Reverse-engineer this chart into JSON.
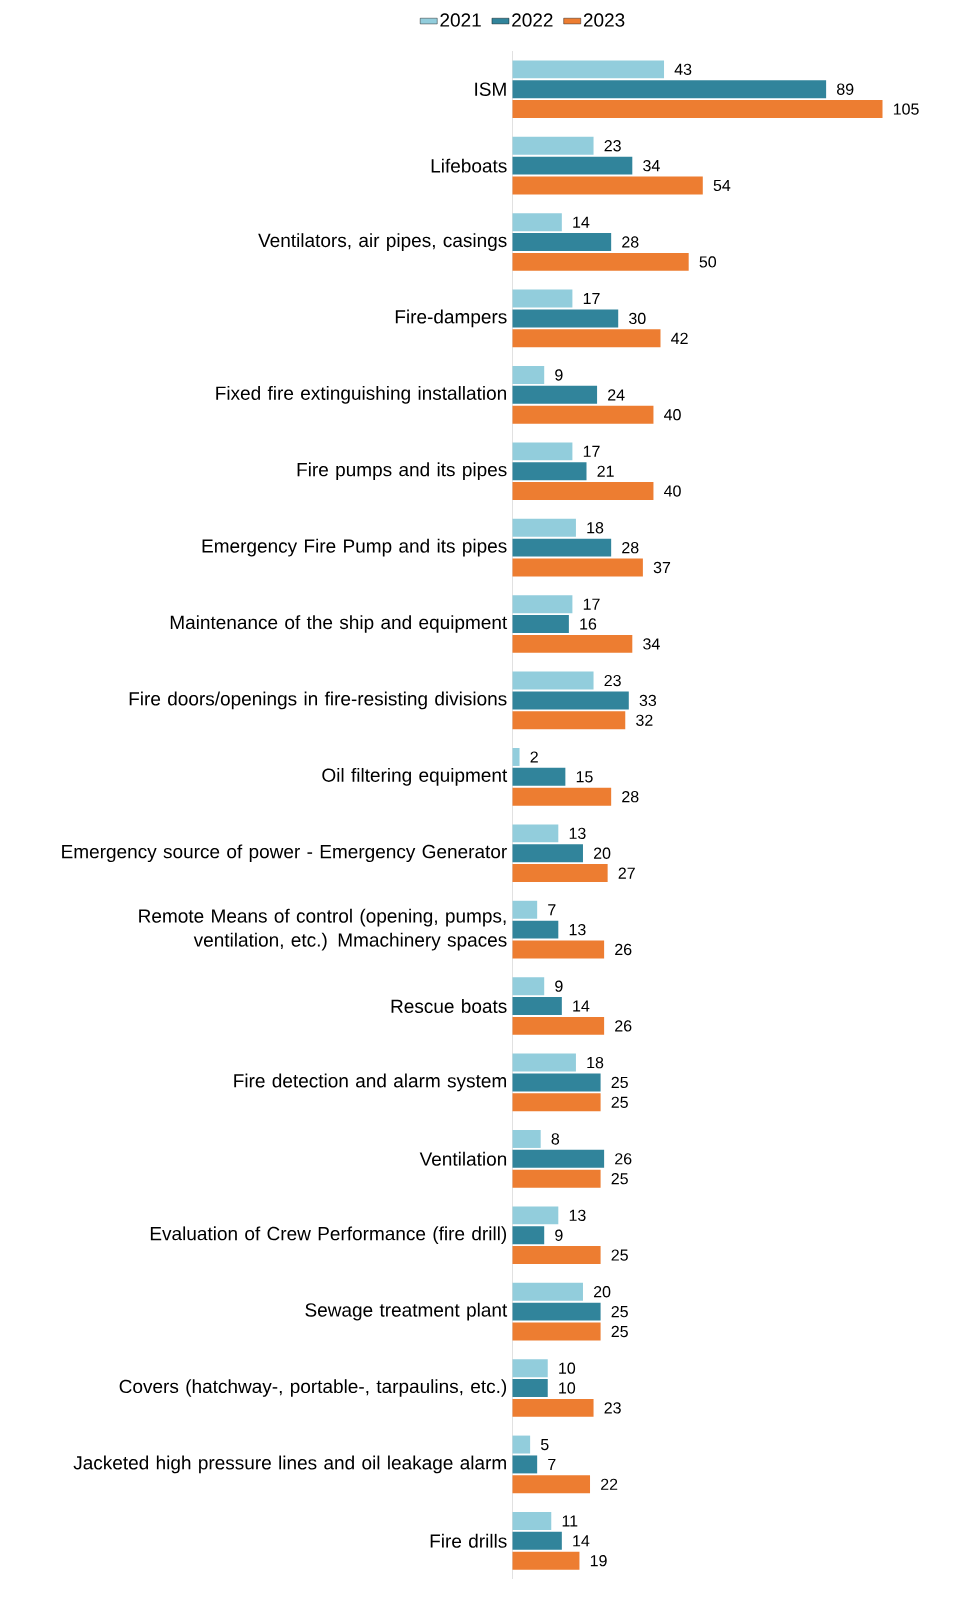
{
  "chart_data": {
    "type": "bar",
    "orientation": "horizontal",
    "data_labels": true,
    "legend": "top",
    "categories": [
      "ISM",
      "Lifeboats",
      "Ventilators, air pipes, casings",
      "Fire-dampers",
      "Fixed fire extinguishing installation",
      "Fire pumps and its pipes",
      "Emergency Fire Pump and its pipes",
      "Maintenance of the ship and equipment",
      "Fire doors/openings in fire-resisting divisions",
      "Oil filtering equipment",
      "Emergency source of power - Emergency Generator",
      "Remote Means of control (opening, pumps, ventilation, etc.) Mmachinery spaces",
      "Rescue boats",
      "Fire detection and alarm system",
      "Ventilation",
      "Evaluation of Crew Performance (fire drill)",
      "Sewage treatment plant",
      "Covers (hatchway-, portable-, tarpaulins, etc.)",
      "Jacketed high pressure lines and oil leakage alarm",
      "Fire drills"
    ],
    "series": [
      {
        "name": "2021",
        "color": "#92cddc",
        "values": [
          43,
          23,
          14,
          17,
          9,
          17,
          18,
          17,
          23,
          2,
          13,
          7,
          9,
          18,
          8,
          13,
          20,
          10,
          5,
          11
        ]
      },
      {
        "name": "2022",
        "color": "#31849b",
        "values": [
          89,
          34,
          28,
          30,
          24,
          21,
          28,
          16,
          33,
          15,
          20,
          13,
          14,
          25,
          26,
          9,
          25,
          10,
          7,
          14
        ]
      },
      {
        "name": "2023",
        "color": "#ed7d31",
        "values": [
          105,
          54,
          50,
          42,
          40,
          40,
          37,
          34,
          32,
          28,
          27,
          26,
          26,
          25,
          25,
          25,
          25,
          23,
          22,
          19
        ]
      }
    ]
  }
}
